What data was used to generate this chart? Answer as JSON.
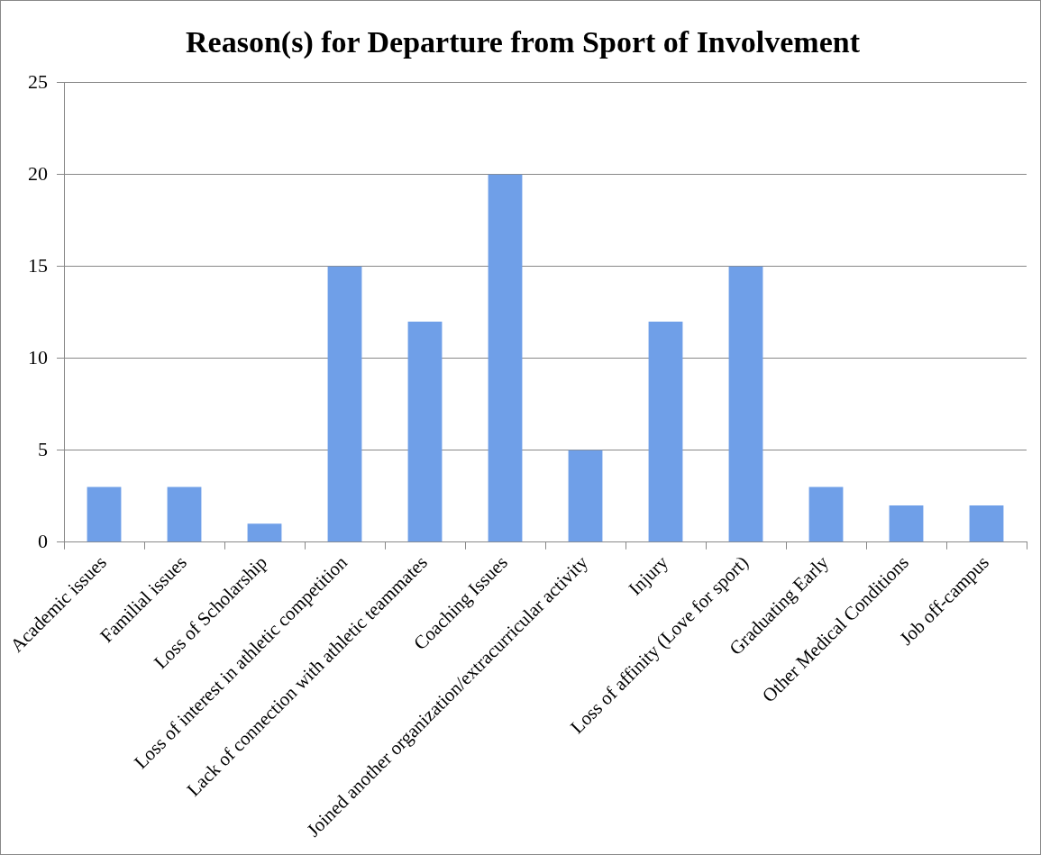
{
  "chart_data": {
    "type": "bar",
    "title": "Reason(s) for Departure from Sport of Involvement",
    "categories": [
      "Academic issues",
      "Familial issues",
      "Loss of Scholarship",
      "Loss of interest in athletic competition",
      "Lack of connection with athletic teammates",
      "Coaching Issues",
      "Joined another organization/extracurricular activity",
      "Injury",
      "Loss of affinity (Love for sport)",
      "Graduating Early",
      "Other Medical Conditions",
      "Job off-campus"
    ],
    "values": [
      3,
      3,
      1,
      15,
      12,
      20,
      5,
      12,
      15,
      3,
      2,
      2
    ],
    "color": "#6f9fe8",
    "ylim": [
      0,
      25
    ],
    "yticks": [
      0,
      5,
      10,
      15,
      20,
      25
    ],
    "grid": "y",
    "legend": false
  }
}
